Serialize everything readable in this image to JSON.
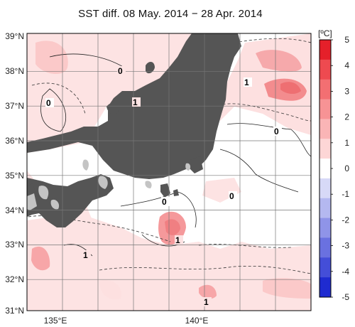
{
  "title": "SST diff. 08 May. 2014 − 28 Apr. 2014",
  "colorbar": {
    "unit": "[ºC]",
    "ticks": [
      "5",
      "4",
      "3",
      "2",
      "1",
      "0",
      "-1",
      "-2",
      "-3",
      "-4",
      "-5"
    ],
    "colors": [
      "#e5202a",
      "#ee4a50",
      "#f36f72",
      "#f79395",
      "#fab5b6",
      "#fdd6d6",
      "#ffffff",
      "#d7d9f7",
      "#b4b8f0",
      "#8f94e8",
      "#6a71e0",
      "#444ed8",
      "#1f2bd0"
    ]
  },
  "axes": {
    "lat_labels": [
      "39°N",
      "38°N",
      "37°N",
      "36°N",
      "35°N",
      "34°N",
      "33°N",
      "32°N",
      "31°N"
    ],
    "lon_labels": [
      "135°E",
      "140°E"
    ]
  },
  "contour_labels": [
    "0",
    "1",
    "0",
    "1",
    "0",
    "0",
    "0",
    "1",
    "1",
    "1"
  ],
  "colors": {
    "land": "#555555",
    "lake": "#c4c4c4",
    "grid": "#777777"
  }
}
